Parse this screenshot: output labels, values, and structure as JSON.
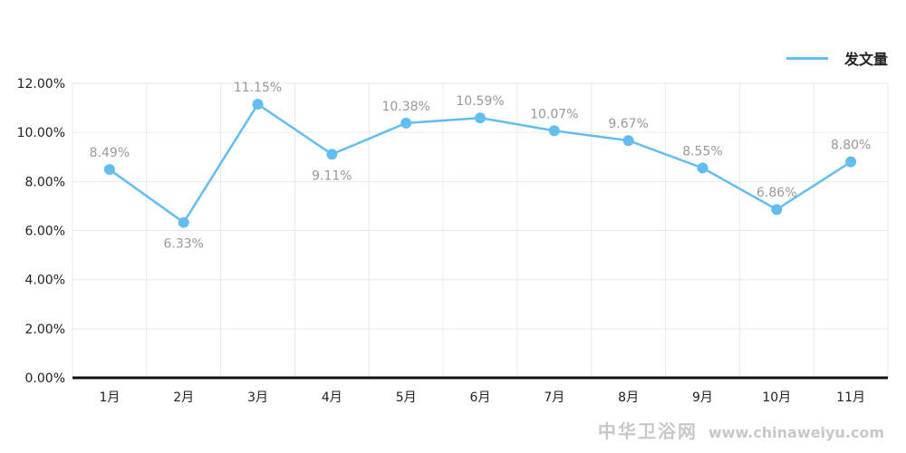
{
  "chart_data": {
    "type": "line",
    "title": "",
    "xlabel": "",
    "ylabel": "",
    "categories": [
      "1月",
      "2月",
      "3月",
      "4月",
      "5月",
      "6月",
      "7月",
      "8月",
      "9月",
      "10月",
      "11月"
    ],
    "series": [
      {
        "name": "发文量",
        "values": [
          8.49,
          6.33,
          11.15,
          9.11,
          10.38,
          10.59,
          10.07,
          9.67,
          8.55,
          6.86,
          8.8
        ],
        "color": "#63bdee"
      }
    ],
    "data_labels": [
      "8.49%",
      "6.33%",
      "11.15%",
      "9.11%",
      "10.38%",
      "10.59%",
      "10.07%",
      "9.67%",
      "8.55%",
      "6.86%",
      "8.80%"
    ],
    "ylim": [
      0,
      12
    ],
    "yticks": [
      "0.00%",
      "2.00%",
      "4.00%",
      "6.00%",
      "8.00%",
      "10.00%",
      "12.00%"
    ],
    "grid": true,
    "legend_position": "top-right"
  },
  "legend": {
    "label": "发文量"
  },
  "watermark": {
    "cn": "中华卫浴网",
    "en": "www.chinaweiyu.com"
  }
}
